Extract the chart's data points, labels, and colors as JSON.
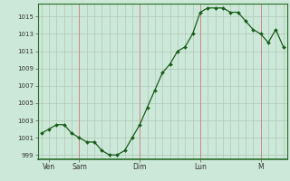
{
  "y_values": [
    1001.5,
    1002,
    1002.5,
    1002.5,
    1001.5,
    1001,
    1000.5,
    1000.5,
    999.5,
    999,
    999,
    999.5,
    1001,
    1002.5,
    1004.5,
    1006.5,
    1008.5,
    1009.5,
    1011,
    1011.5,
    1013,
    1015.5,
    1016,
    1016,
    1016,
    1015.5,
    1015.5,
    1014.5,
    1013.5,
    1013,
    1012,
    1013.5,
    1011.5
  ],
  "day_ticks_x": [
    1,
    5,
    13,
    21,
    29
  ],
  "day_labels": [
    "Ven",
    "Sam",
    "Dim",
    "Lun",
    "M"
  ],
  "day_vlines": [
    5,
    13,
    21,
    29
  ],
  "ylim": [
    998.5,
    1016.5
  ],
  "yticks": [
    999,
    1001,
    1003,
    1005,
    1007,
    1009,
    1011,
    1013,
    1015
  ],
  "bg_color": "#cce8d8",
  "minor_vgrid_color": "#b0c8b8",
  "minor_hgrid_color": "#b0c8b8",
  "day_vline_color": "#cc8888",
  "line_color": "#1a5c1a",
  "marker_color": "#1a5c1a",
  "spine_color": "#2a6c2a",
  "tick_label_color": "#333333"
}
